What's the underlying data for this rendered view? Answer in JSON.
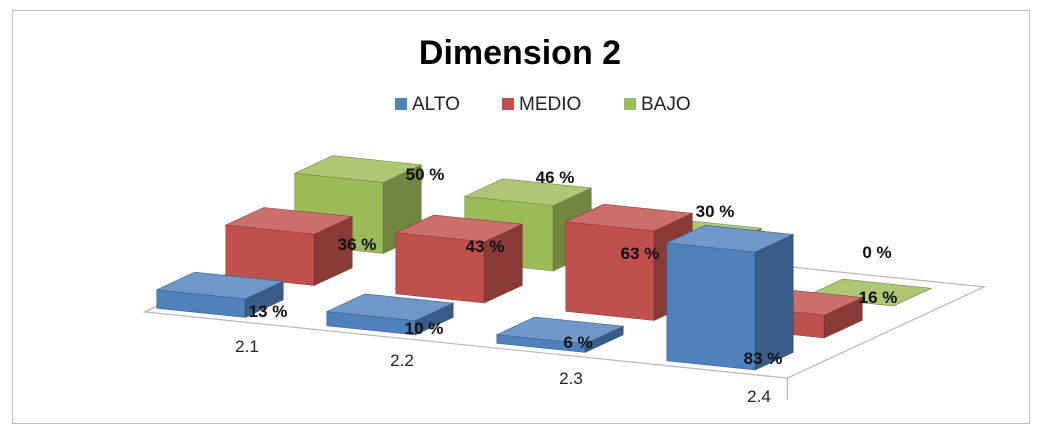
{
  "chart_data": {
    "type": "bar",
    "title": "Dimension 2",
    "categories": [
      "2.1",
      "2.2",
      "2.3",
      "2.4"
    ],
    "series": [
      {
        "name": "ALTO",
        "color": "#4f81bd",
        "values": [
          13,
          10,
          6,
          83
        ],
        "labels": [
          "13 %",
          "10 %",
          "6 %",
          "83 %"
        ]
      },
      {
        "name": "MEDIO",
        "color": "#c0504d",
        "values": [
          36,
          43,
          63,
          16
        ],
        "labels": [
          "36 %",
          "43 %",
          "63 %",
          "16 %"
        ]
      },
      {
        "name": "BAJO",
        "color": "#9bbb59",
        "values": [
          50,
          46,
          30,
          0
        ],
        "labels": [
          "50 %",
          "46 %",
          "30 %",
          "0 %"
        ]
      }
    ],
    "ylim": [
      0,
      100
    ],
    "legend_position": "top",
    "grid": false,
    "projection": "3d-column"
  }
}
